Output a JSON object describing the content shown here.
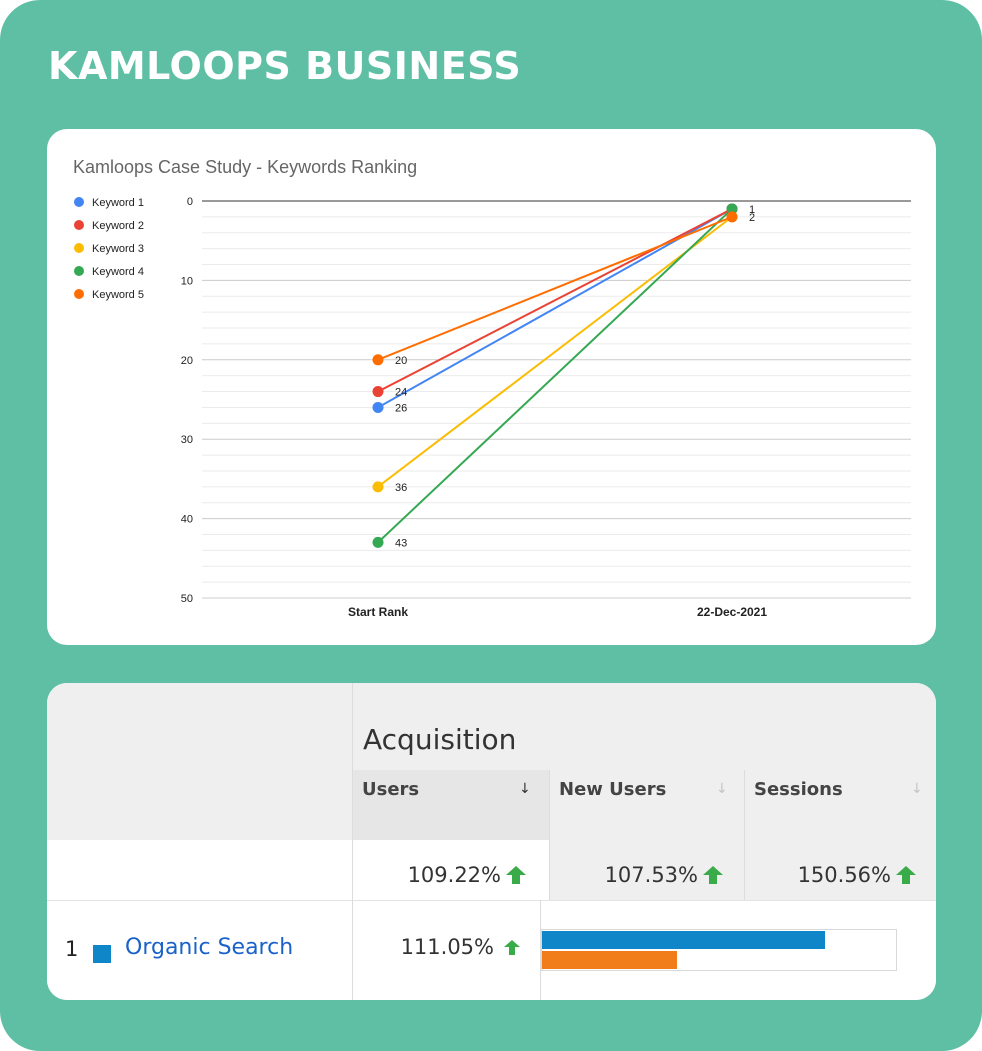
{
  "header": {
    "title": "KAMLOOPS BUSINESS"
  },
  "chart_data": {
    "type": "line",
    "title": "Kamloops Case Study - Keywords Ranking",
    "xlabel": "",
    "ylabel": "",
    "categories": [
      "Start Rank",
      "22-Dec-2021"
    ],
    "y_ticks": [
      "0",
      "10",
      "20",
      "30",
      "40",
      "50"
    ],
    "ylim": [
      0,
      50
    ],
    "y_reversed": true,
    "grid": true,
    "legend_position": "left",
    "series": [
      {
        "name": "Keyword 1",
        "color": "#4285f4",
        "values": [
          26,
          1
        ]
      },
      {
        "name": "Keyword 2",
        "color": "#ea4335",
        "values": [
          24,
          1
        ]
      },
      {
        "name": "Keyword 3",
        "color": "#fbbc04",
        "values": [
          36,
          2
        ]
      },
      {
        "name": "Keyword 4",
        "color": "#34a853",
        "values": [
          43,
          1
        ]
      },
      {
        "name": "Keyword 5",
        "color": "#ff6d01",
        "values": [
          20,
          2
        ]
      }
    ],
    "data_labels": [
      {
        "series": 4,
        "point": 0,
        "text": "20"
      },
      {
        "series": 1,
        "point": 0,
        "text": "24"
      },
      {
        "series": 0,
        "point": 0,
        "text": "26"
      },
      {
        "series": 2,
        "point": 0,
        "text": "36"
      },
      {
        "series": 3,
        "point": 0,
        "text": "43"
      },
      {
        "series": 3,
        "point": 1,
        "text": "1"
      },
      {
        "series": 4,
        "point": 1,
        "text": "2"
      }
    ]
  },
  "table": {
    "section_title": "Acquisition",
    "columns": [
      {
        "label": "Users",
        "arrow": "↓",
        "total": "109.22%"
      },
      {
        "label": "New Users",
        "arrow": "↓",
        "total": "107.53%"
      },
      {
        "label": "Sessions",
        "arrow": "↓",
        "total": "150.56%"
      }
    ],
    "row": {
      "index": "1",
      "name": "Organic Search",
      "users": "111.05%",
      "bar_new_users_fraction": 0.8,
      "bar_sessions_fraction": 0.38
    },
    "colors": {
      "up_arrow": "#3aab49",
      "bar_blue": "#0e86c8",
      "bar_orange": "#f07d1a",
      "swatch": "#0e86c8"
    }
  }
}
